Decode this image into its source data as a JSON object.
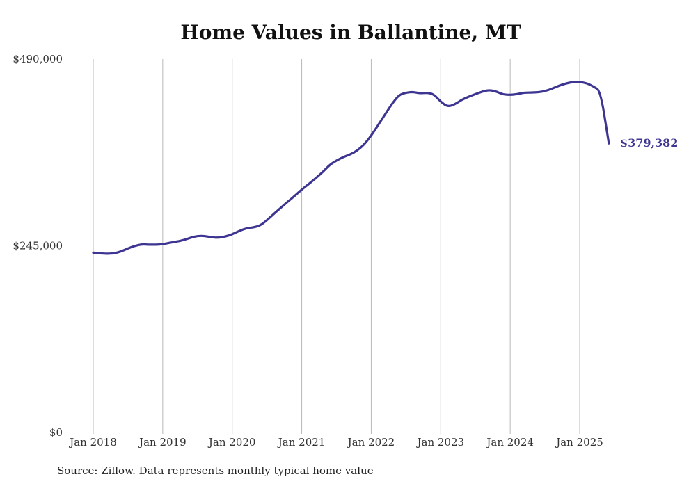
{
  "chart_data": {
    "type": "line",
    "title": "Home Values in Ballantine, MT",
    "xlabel": "",
    "ylabel": "",
    "ylim": [
      0,
      490000
    ],
    "y_ticks": [
      {
        "value": 0,
        "label": "$0"
      },
      {
        "value": 245000,
        "label": "$245,000"
      },
      {
        "value": 490000,
        "label": "$490,000"
      }
    ],
    "x_ticks": [
      {
        "value": 2018.0,
        "label": "Jan 2018"
      },
      {
        "value": 2019.0,
        "label": "Jan 2019"
      },
      {
        "value": 2020.0,
        "label": "Jan 2020"
      },
      {
        "value": 2021.0,
        "label": "Jan 2021"
      },
      {
        "value": 2022.0,
        "label": "Jan 2022"
      },
      {
        "value": 2023.0,
        "label": "Jan 2023"
      },
      {
        "value": 2024.0,
        "label": "Jan 2024"
      },
      {
        "value": 2025.0,
        "label": "Jan 2025"
      }
    ],
    "xlim": [
      2018.0,
      2025.42
    ],
    "grid": "vertical",
    "series": [
      {
        "color": "#3d3591",
        "end_label": "$379,382",
        "x": [
          2018.0,
          2018.1,
          2018.2,
          2018.3,
          2018.4,
          2018.5,
          2018.6,
          2018.7,
          2018.8,
          2018.9,
          2019.0,
          2019.1,
          2019.2,
          2019.3,
          2019.4,
          2019.5,
          2019.6,
          2019.7,
          2019.8,
          2019.9,
          2020.0,
          2020.1,
          2020.2,
          2020.3,
          2020.4,
          2020.5,
          2020.6,
          2020.7,
          2020.8,
          2020.9,
          2021.0,
          2021.1,
          2021.2,
          2021.3,
          2021.4,
          2021.5,
          2021.6,
          2021.7,
          2021.8,
          2021.9,
          2022.0,
          2022.1,
          2022.2,
          2022.3,
          2022.4,
          2022.5,
          2022.6,
          2022.7,
          2022.8,
          2022.9,
          2023.0,
          2023.1,
          2023.2,
          2023.3,
          2023.4,
          2023.5,
          2023.6,
          2023.7,
          2023.8,
          2023.9,
          2024.0,
          2024.1,
          2024.2,
          2024.3,
          2024.4,
          2024.5,
          2024.6,
          2024.7,
          2024.8,
          2024.9,
          2025.0,
          2025.1,
          2025.2,
          2025.3,
          2025.42
        ],
        "values": [
          236000,
          235000,
          234500,
          235000,
          237500,
          241500,
          245000,
          247000,
          246500,
          246500,
          247000,
          249000,
          250500,
          252500,
          255500,
          258000,
          258000,
          256000,
          255500,
          257000,
          260000,
          264500,
          268000,
          269000,
          271500,
          278500,
          287000,
          295000,
          303000,
          310500,
          319000,
          326000,
          333500,
          341500,
          351000,
          357000,
          361500,
          365000,
          370000,
          378000,
          389500,
          403500,
          417500,
          431500,
          443000,
          446000,
          447000,
          445000,
          446000,
          444000,
          434000,
          427500,
          430500,
          436500,
          440500,
          444000,
          447500,
          449500,
          447500,
          443500,
          443000,
          444000,
          446000,
          446000,
          446500,
          448000,
          451000,
          455000,
          458000,
          460000,
          460000,
          458500,
          454000,
          448000,
          379382
        ]
      }
    ]
  },
  "footer": {
    "source": "Source: Zillow. Data represents monthly typical home value"
  }
}
